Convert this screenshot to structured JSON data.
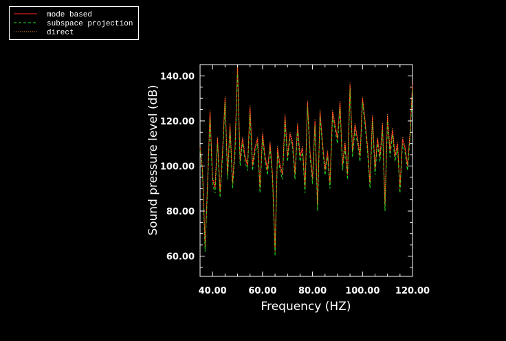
{
  "chart_data": {
    "type": "line",
    "title": "",
    "xlabel": "Frequency (HZ)",
    "ylabel": "Sound pressure level (dB)",
    "xlim": [
      35,
      120
    ],
    "ylim": [
      51,
      145
    ],
    "grid": false,
    "legend_placement": "top-left",
    "x_ticks": [
      40,
      60,
      80,
      100,
      120
    ],
    "x_tick_labels": [
      "40.00",
      "60.00",
      "80.00",
      "100.00",
      "120.00"
    ],
    "y_ticks": [
      60,
      80,
      100,
      120,
      140
    ],
    "y_tick_labels": [
      "60.00",
      "80.00",
      "100.00",
      "120.00",
      "140.00"
    ],
    "x": [
      35,
      36,
      37,
      38,
      39,
      40,
      41,
      42,
      43,
      44,
      45,
      46,
      47,
      48,
      49,
      50,
      51,
      52,
      53,
      54,
      55,
      56,
      57,
      58,
      59,
      60,
      61,
      62,
      63,
      64,
      65,
      66,
      67,
      68,
      69,
      70,
      71,
      72,
      73,
      74,
      75,
      76,
      77,
      78,
      79,
      80,
      81,
      82,
      83,
      84,
      85,
      86,
      87,
      88,
      89,
      90,
      91,
      92,
      93,
      94,
      95,
      96,
      97,
      98,
      99,
      100,
      101,
      102,
      103,
      104,
      105,
      106,
      107,
      108,
      109,
      110,
      111,
      112,
      113,
      114,
      115,
      116,
      117,
      118,
      119,
      120
    ],
    "series": [
      {
        "name": "mode based",
        "color": "#ff2a2a",
        "style": "solid",
        "values": [
          108,
          98,
          64,
          92,
          124,
          94,
          90,
          112,
          88,
          106,
          130,
          96,
          118,
          92,
          108,
          145,
          102,
          112,
          104,
          100,
          126,
          100,
          108,
          112,
          90,
          114,
          104,
          98,
          110,
          96,
          62,
          108,
          100,
          96,
          122,
          104,
          114,
          110,
          96,
          118,
          104,
          108,
          90,
          128,
          106,
          94,
          120,
          82,
          124,
          110,
          98,
          106,
          92,
          124,
          118,
          112,
          128,
          100,
          110,
          96,
          136,
          106,
          118,
          112,
          104,
          130,
          120,
          108,
          92,
          122,
          98,
          112,
          104,
          118,
          82,
          122,
          106,
          116,
          104,
          110,
          90,
          112,
          108,
          100,
          114,
          136
        ]
      },
      {
        "name": "subspace projection",
        "color": "#22dd22",
        "style": "dashed",
        "values": [
          107,
          97,
          62,
          90,
          121,
          92,
          88,
          110,
          86,
          104,
          128,
          94,
          116,
          90,
          106,
          142,
          100,
          110,
          102,
          98,
          123,
          98,
          106,
          110,
          88,
          112,
          102,
          96,
          108,
          94,
          60,
          106,
          98,
          94,
          120,
          102,
          112,
          108,
          94,
          116,
          102,
          106,
          88,
          126,
          104,
          92,
          118,
          80,
          122,
          108,
          96,
          104,
          90,
          122,
          116,
          110,
          126,
          98,
          108,
          94,
          134,
          104,
          116,
          110,
          102,
          128,
          118,
          106,
          90,
          120,
          96,
          110,
          102,
          116,
          80,
          120,
          104,
          114,
          102,
          108,
          88,
          110,
          106,
          98,
          112,
          134
        ]
      },
      {
        "name": "direct",
        "color": "#ff8c1a",
        "style": "dotted",
        "values": [
          109,
          99,
          65,
          93,
          125,
          95,
          91,
          113,
          89,
          107,
          131,
          97,
          119,
          93,
          109,
          144,
          103,
          113,
          105,
          101,
          127,
          101,
          109,
          113,
          91,
          115,
          105,
          99,
          111,
          97,
          64,
          109,
          101,
          97,
          123,
          105,
          115,
          111,
          97,
          119,
          105,
          109,
          91,
          129,
          107,
          95,
          121,
          83,
          125,
          111,
          99,
          107,
          93,
          125,
          119,
          113,
          129,
          101,
          111,
          97,
          137,
          107,
          119,
          113,
          105,
          131,
          121,
          109,
          93,
          123,
          99,
          113,
          105,
          119,
          83,
          123,
          107,
          117,
          105,
          111,
          91,
          113,
          109,
          101,
          115,
          137
        ]
      }
    ]
  }
}
